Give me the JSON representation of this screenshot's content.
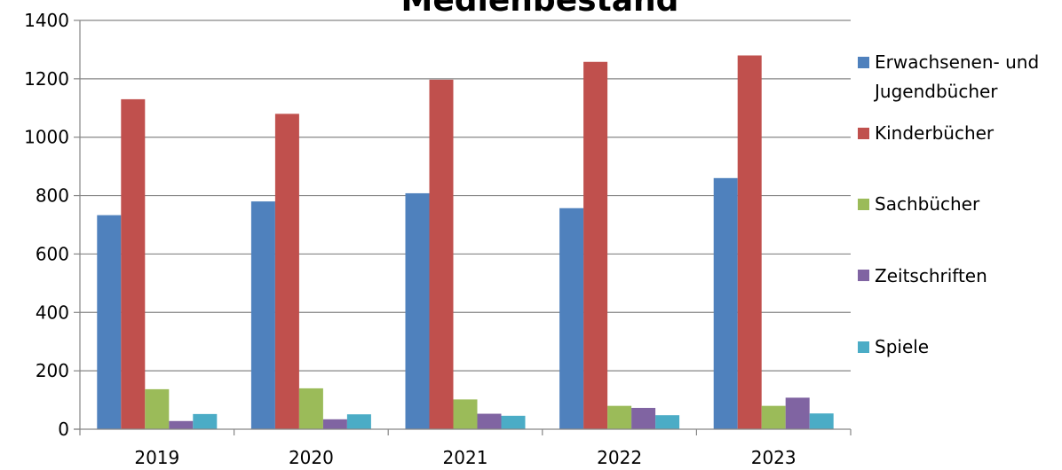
{
  "chart_data": {
    "type": "bar",
    "title": "Medienbestand",
    "xlabel": "",
    "ylabel": "",
    "categories": [
      "2019",
      "2020",
      "2021",
      "2022",
      "2023"
    ],
    "ylim": [
      0,
      1400
    ],
    "yticks": [
      0,
      200,
      400,
      600,
      800,
      1000,
      1200,
      1400
    ],
    "grid": true,
    "legend_position": "right",
    "series": [
      {
        "name_lines": [
          "Erwachsenen- und",
          "Jugendbücher"
        ],
        "color": "#4F81BD",
        "values": [
          733,
          780,
          808,
          757,
          860
        ]
      },
      {
        "name_lines": [
          "Kinderbücher"
        ],
        "color": "#C0504D",
        "values": [
          1130,
          1080,
          1197,
          1258,
          1280
        ]
      },
      {
        "name_lines": [
          "Sachbücher"
        ],
        "color": "#9BBB59",
        "values": [
          137,
          140,
          102,
          80,
          80
        ]
      },
      {
        "name_lines": [
          "Zeitschriften"
        ],
        "color": "#8064A2",
        "values": [
          28,
          34,
          53,
          73,
          108
        ]
      },
      {
        "name_lines": [
          "Spiele"
        ],
        "color": "#4BACC6",
        "values": [
          52,
          51,
          46,
          48,
          54
        ]
      }
    ]
  }
}
